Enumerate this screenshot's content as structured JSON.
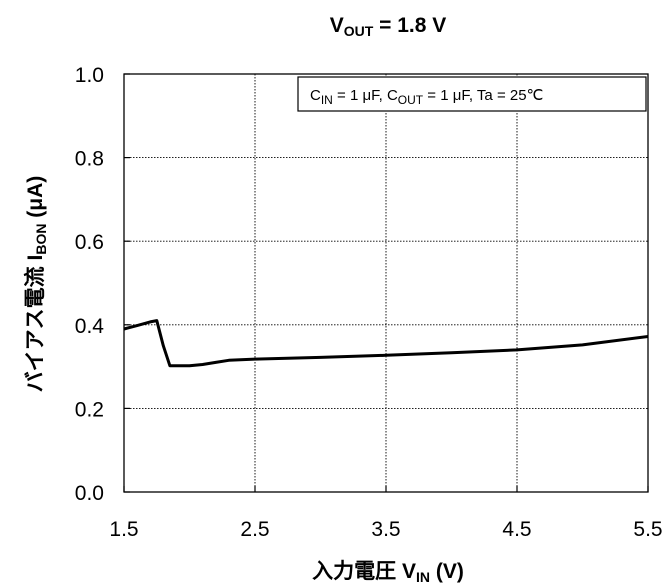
{
  "chart_data": {
    "type": "line",
    "title": {
      "main": "V",
      "sub": "OUT",
      "rest": " = 1.8 V"
    },
    "xlabel": {
      "main": "入力電圧  V",
      "sub": "IN",
      "rest": " (V)"
    },
    "ylabel": {
      "main": "バイアス電流  I",
      "sub": "BON",
      "rest": " (μA)"
    },
    "conditions": [
      {
        "main": "C",
        "sub": "IN",
        "rest": " = 1 μF, "
      },
      {
        "main": "C",
        "sub": "OUT",
        "rest": " = 1 μF, Ta = 25℃"
      }
    ],
    "xlim": [
      1.5,
      5.5
    ],
    "ylim": [
      0.0,
      1.0
    ],
    "x_ticks": [
      1.5,
      2.5,
      3.5,
      4.5,
      5.5
    ],
    "x_tick_labels": [
      "1.5",
      "2.5",
      "3.5",
      "4.5",
      "5.5"
    ],
    "y_ticks": [
      0.0,
      0.2,
      0.4,
      0.6,
      0.8,
      1.0
    ],
    "y_tick_labels": [
      "0.0",
      "0.2",
      "0.4",
      "0.6",
      "0.8",
      "1.0"
    ],
    "grid": true,
    "series": [
      {
        "color": "#000000",
        "x": [
          1.5,
          1.6,
          1.7,
          1.75,
          1.8,
          1.85,
          1.9,
          2.0,
          2.1,
          2.2,
          2.3,
          2.5,
          3.0,
          3.5,
          4.0,
          4.5,
          5.0,
          5.5
        ],
        "y": [
          0.39,
          0.398,
          0.407,
          0.41,
          0.35,
          0.302,
          0.302,
          0.302,
          0.305,
          0.31,
          0.315,
          0.318,
          0.322,
          0.327,
          0.333,
          0.34,
          0.352,
          0.372
        ]
      }
    ]
  }
}
